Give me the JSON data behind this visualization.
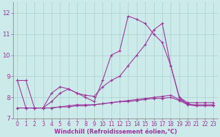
{
  "background_color": "#cceaea",
  "grid_color": "#aacccc",
  "line_color": "#993399",
  "marker": "+",
  "marker_size": 3.5,
  "linewidth": 0.8,
  "xlabel": "Windchill (Refroidissement éolien,°C)",
  "xlabel_fontsize": 6.0,
  "ylabel_fontsize": 6.5,
  "tick_fontsize": 5.5,
  "ylim": [
    7.0,
    12.5
  ],
  "xlim": [
    -0.5,
    23.5
  ],
  "yticks": [
    7,
    8,
    9,
    10,
    11,
    12
  ],
  "xticks": [
    0,
    1,
    2,
    3,
    4,
    5,
    6,
    7,
    8,
    9,
    10,
    11,
    12,
    13,
    14,
    15,
    16,
    17,
    18,
    19,
    20,
    21,
    22,
    23
  ],
  "series": [
    {
      "x": [
        0,
        1,
        2,
        3,
        4,
        5,
        6,
        7,
        8,
        9,
        10,
        11,
        12,
        13,
        14,
        15,
        16,
        17,
        18,
        19,
        20,
        21,
        22,
        23
      ],
      "y": [
        8.8,
        8.8,
        7.5,
        7.5,
        8.2,
        8.5,
        8.4,
        8.2,
        8.0,
        7.8,
        8.8,
        10.0,
        10.2,
        11.85,
        11.7,
        11.5,
        11.0,
        10.6,
        9.5,
        8.0,
        7.65,
        7.65,
        7.65,
        7.65
      ]
    },
    {
      "x": [
        0,
        1,
        2,
        3,
        4,
        5,
        6,
        7,
        8,
        9,
        10,
        11,
        12,
        13,
        14,
        15,
        16,
        17,
        18,
        19,
        20,
        21,
        22,
        23
      ],
      "y": [
        8.8,
        7.5,
        7.5,
        7.5,
        7.8,
        8.2,
        8.4,
        8.2,
        8.1,
        8.05,
        8.5,
        8.8,
        9.0,
        9.5,
        10.0,
        10.5,
        11.2,
        11.5,
        9.5,
        8.0,
        7.75,
        7.75,
        7.75,
        7.75
      ]
    },
    {
      "x": [
        0,
        1,
        2,
        3,
        4,
        5,
        6,
        7,
        8,
        9,
        10,
        11,
        12,
        13,
        14,
        15,
        16,
        17,
        18,
        19,
        20,
        21,
        22,
        23
      ],
      "y": [
        7.5,
        7.5,
        7.5,
        7.5,
        7.5,
        7.55,
        7.6,
        7.65,
        7.65,
        7.65,
        7.7,
        7.75,
        7.8,
        7.85,
        7.9,
        7.95,
        8.0,
        8.05,
        8.1,
        7.9,
        7.7,
        7.6,
        7.6,
        7.6
      ]
    },
    {
      "x": [
        0,
        1,
        2,
        3,
        4,
        5,
        6,
        7,
        8,
        9,
        10,
        11,
        12,
        13,
        14,
        15,
        16,
        17,
        18,
        19,
        20,
        21,
        22,
        23
      ],
      "y": [
        7.5,
        7.5,
        7.5,
        7.5,
        7.5,
        7.55,
        7.55,
        7.6,
        7.6,
        7.65,
        7.7,
        7.75,
        7.8,
        7.8,
        7.85,
        7.9,
        7.95,
        7.95,
        8.0,
        7.85,
        7.65,
        7.6,
        7.6,
        7.6
      ]
    }
  ]
}
